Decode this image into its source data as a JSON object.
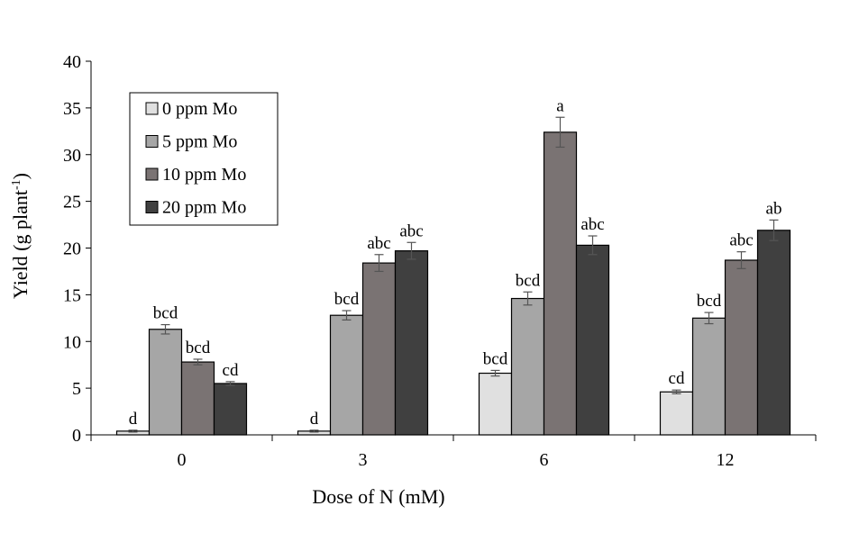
{
  "chart_data": {
    "type": "bar",
    "title": "",
    "xlabel": "Dose of N (mM)",
    "ylabel_main": "Yield (g plant",
    "ylabel_sup": "-1",
    "ylabel_tail": ")",
    "ylim": [
      0,
      40
    ],
    "ytick_step": 5,
    "ytick_labels": [
      "0",
      "5",
      "10",
      "15",
      "20",
      "25",
      "30",
      "35",
      "40"
    ],
    "categories": [
      "0",
      "3",
      "6",
      "12"
    ],
    "legend_position": "top-left",
    "series": [
      {
        "name": "0 ppm Mo",
        "color": "#e0e0e0",
        "values": [
          0.4,
          0.4,
          6.6,
          4.6
        ],
        "errors": [
          0.1,
          0.1,
          0.3,
          0.2
        ],
        "letters": [
          "d",
          "d",
          "bcd",
          "cd"
        ]
      },
      {
        "name": "5 ppm Mo",
        "color": "#a6a6a6",
        "values": [
          11.3,
          12.8,
          14.6,
          12.5
        ],
        "errors": [
          0.5,
          0.5,
          0.7,
          0.6
        ],
        "letters": [
          "bcd",
          "bcd",
          "bcd",
          "bcd"
        ]
      },
      {
        "name": "10 ppm Mo",
        "color": "#7a7373",
        "values": [
          7.8,
          18.4,
          32.4,
          18.7
        ],
        "errors": [
          0.3,
          0.9,
          1.6,
          0.9
        ],
        "letters": [
          "bcd",
          "abc",
          "a",
          "abc"
        ]
      },
      {
        "name": "20 ppm Mo",
        "color": "#404040",
        "values": [
          5.5,
          19.7,
          20.3,
          21.9
        ],
        "errors": [
          0.2,
          0.9,
          1.0,
          1.1
        ],
        "letters": [
          "cd",
          "abc",
          "abc",
          "ab"
        ]
      }
    ]
  }
}
